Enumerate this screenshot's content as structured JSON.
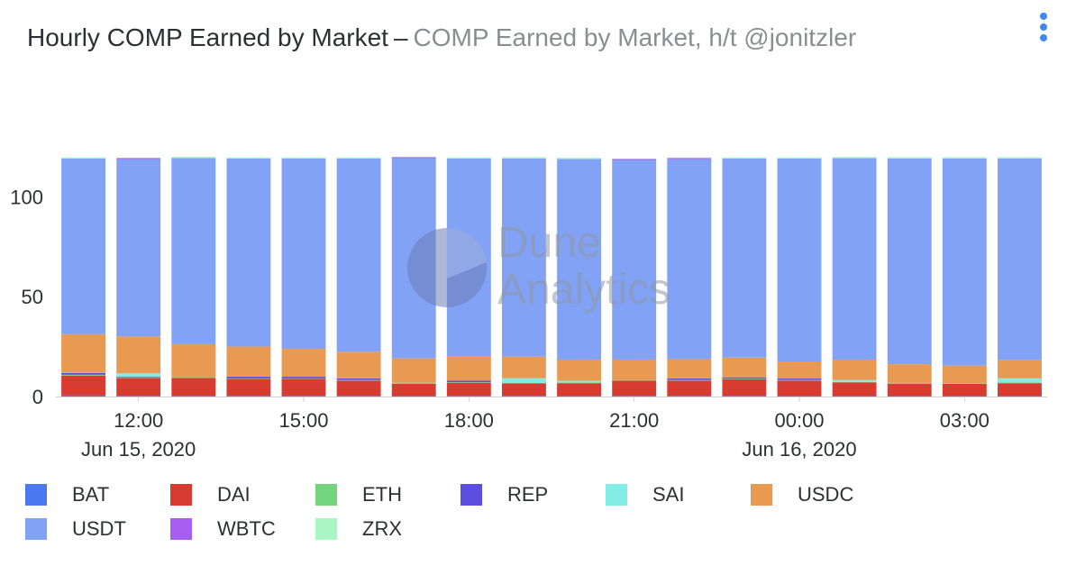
{
  "header": {
    "title": "Hourly COMP Earned by Market",
    "separator": "–",
    "subtitle": "COMP Earned by Market, h/t @jonitzler"
  },
  "watermark": {
    "line1": "Dune",
    "line2": "Analytics"
  },
  "menu": {
    "icon": "more-vertical-icon",
    "color": "#3b8be8"
  },
  "chart_data": {
    "type": "bar",
    "stacked": true,
    "title": "Hourly COMP Earned by Market",
    "xlabel": "",
    "ylabel": "",
    "ylim": [
      0,
      120
    ],
    "yticks": [
      0,
      50,
      100
    ],
    "grid": false,
    "legend_position": "bottom",
    "x_tick_labels": [
      {
        "label": "12:00",
        "date": "Jun 15, 2020",
        "at": "2020-06-15 12:00"
      },
      {
        "label": "15:00",
        "date": "",
        "at": "2020-06-15 15:00"
      },
      {
        "label": "18:00",
        "date": "",
        "at": "2020-06-15 18:00"
      },
      {
        "label": "21:00",
        "date": "",
        "at": "2020-06-15 21:00"
      },
      {
        "label": "00:00",
        "date": "Jun 16, 2020",
        "at": "2020-06-16 00:00"
      },
      {
        "label": "03:00",
        "date": "",
        "at": "2020-06-16 03:00"
      }
    ],
    "categories": [
      "2020-06-15 11:00",
      "2020-06-15 12:00",
      "2020-06-15 13:00",
      "2020-06-15 14:00",
      "2020-06-15 15:00",
      "2020-06-15 16:00",
      "2020-06-15 17:00",
      "2020-06-15 18:00",
      "2020-06-15 19:00",
      "2020-06-15 20:00",
      "2020-06-15 21:00",
      "2020-06-15 22:00",
      "2020-06-15 23:00",
      "2020-06-16 00:00",
      "2020-06-16 01:00",
      "2020-06-16 02:00",
      "2020-06-16 03:00",
      "2020-06-16 04:00"
    ],
    "series": [
      {
        "name": "BAT",
        "color": "#4a78f0",
        "values": [
          0.5,
          0.3,
          0.3,
          0.3,
          0.3,
          0.3,
          0.2,
          0.3,
          0.3,
          0.2,
          0.3,
          0.3,
          0.3,
          0.2,
          0.2,
          0.2,
          0.2,
          0.2
        ]
      },
      {
        "name": "DAI",
        "color": "#d83b30",
        "values": [
          10,
          9,
          9,
          8.5,
          8.5,
          7.7,
          6.2,
          6.5,
          6.3,
          6.5,
          7.7,
          7.7,
          8.3,
          7.8,
          6.8,
          6.2,
          6.2,
          6.5
        ]
      },
      {
        "name": "ETH",
        "color": "#72d57e",
        "values": [
          0.4,
          0.4,
          0.4,
          0.3,
          0.3,
          0.3,
          0.5,
          0.3,
          0.3,
          0.4,
          0.3,
          0.3,
          0.3,
          0.3,
          0.3,
          0.4,
          0.3,
          0.4
        ]
      },
      {
        "name": "REP",
        "color": "#5b4fe0",
        "values": [
          1,
          0.3,
          0,
          0.9,
          0.8,
          0.8,
          0,
          0.8,
          0,
          0,
          0,
          0.8,
          0.7,
          0.7,
          0,
          0,
          0,
          0
        ]
      },
      {
        "name": "SAI",
        "color": "#82ece7",
        "values": [
          0.3,
          1.6,
          0,
          0,
          0,
          0,
          0,
          0,
          2.3,
          0.8,
          0,
          0,
          0,
          0,
          1,
          0,
          0,
          2
        ]
      },
      {
        "name": "USDC",
        "color": "#e99a52",
        "values": [
          19,
          18.5,
          16.5,
          15,
          14,
          13.3,
          12.2,
          12.4,
          10.8,
          10.6,
          10.2,
          9.6,
          9.9,
          8.6,
          10.2,
          9.4,
          8.8,
          9.1
        ]
      },
      {
        "name": "USDT",
        "color": "#82a2f5",
        "values": [
          87.9,
          88.7,
          93.2,
          94.1,
          95.2,
          96.7,
          100.1,
          98.8,
          99.2,
          100.4,
          99.8,
          100.1,
          99.6,
          101.5,
          100.8,
          103,
          103.7,
          101
        ]
      },
      {
        "name": "WBTC",
        "color": "#a85ef2",
        "values": [
          0,
          0.6,
          0,
          0,
          0,
          0,
          0.6,
          0,
          0,
          0,
          0.6,
          0.6,
          0,
          0,
          0,
          0,
          0,
          0
        ]
      },
      {
        "name": "ZRX",
        "color": "#a9f5c3",
        "values": [
          0.6,
          0.2,
          0.6,
          0.6,
          0.6,
          0.6,
          0.3,
          0.6,
          0.6,
          0.6,
          0.2,
          0.3,
          0.6,
          0.6,
          0.6,
          0.6,
          0.6,
          0.6
        ]
      }
    ]
  }
}
